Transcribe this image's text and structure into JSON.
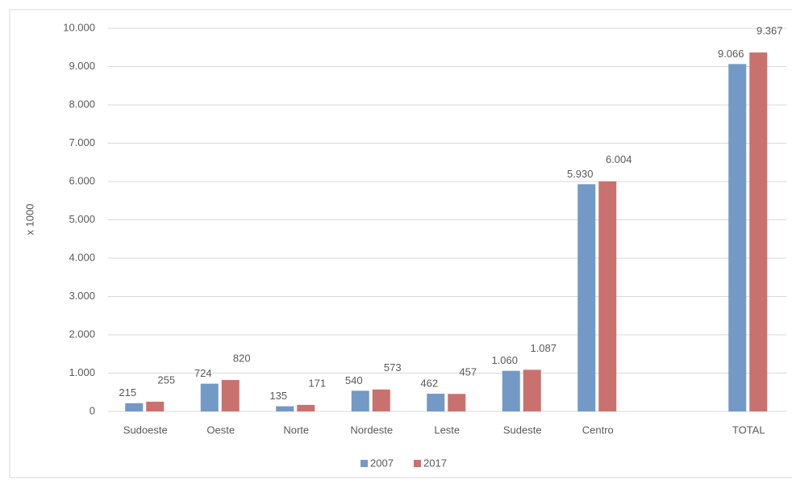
{
  "chart_data": {
    "type": "bar",
    "y_axis_label": "x 1000",
    "categories": [
      "Sudoeste",
      "Oeste",
      "Norte",
      "Nordeste",
      "Leste",
      "Sudeste",
      "Centro",
      null,
      "TOTAL"
    ],
    "series": [
      {
        "name": "2007",
        "color": "#7399c6",
        "values": [
          215,
          724,
          135,
          540,
          462,
          1060,
          5930,
          null,
          9066
        ],
        "value_labels": [
          "215",
          "724",
          "135",
          "540",
          "462",
          "1.060",
          "5.930",
          null,
          "9.066"
        ]
      },
      {
        "name": "2017",
        "color": "#c9716f",
        "values": [
          255,
          820,
          171,
          573,
          457,
          1087,
          6004,
          null,
          9367
        ],
        "value_labels": [
          "255",
          "820",
          "171",
          "573",
          "457",
          "1.087",
          "6.004",
          null,
          "9.367"
        ]
      }
    ],
    "ylim": [
      0,
      10000
    ],
    "yticks": [
      0,
      {
        "value": 1000,
        "label": "1.000"
      },
      {
        "value": 2000,
        "label": "2.000"
      },
      {
        "value": 3000,
        "label": "3.000"
      },
      {
        "value": 4000,
        "label": "4.000"
      },
      {
        "value": 5000,
        "label": "5.000"
      },
      {
        "value": 6000,
        "label": "6.000"
      },
      {
        "value": 7000,
        "label": "7.000"
      },
      {
        "value": 8000,
        "label": "8.000"
      },
      {
        "value": 9000,
        "label": "9.000"
      },
      {
        "value": 10000,
        "label": "10.000"
      }
    ],
    "grid": true,
    "legend": "bottom"
  }
}
